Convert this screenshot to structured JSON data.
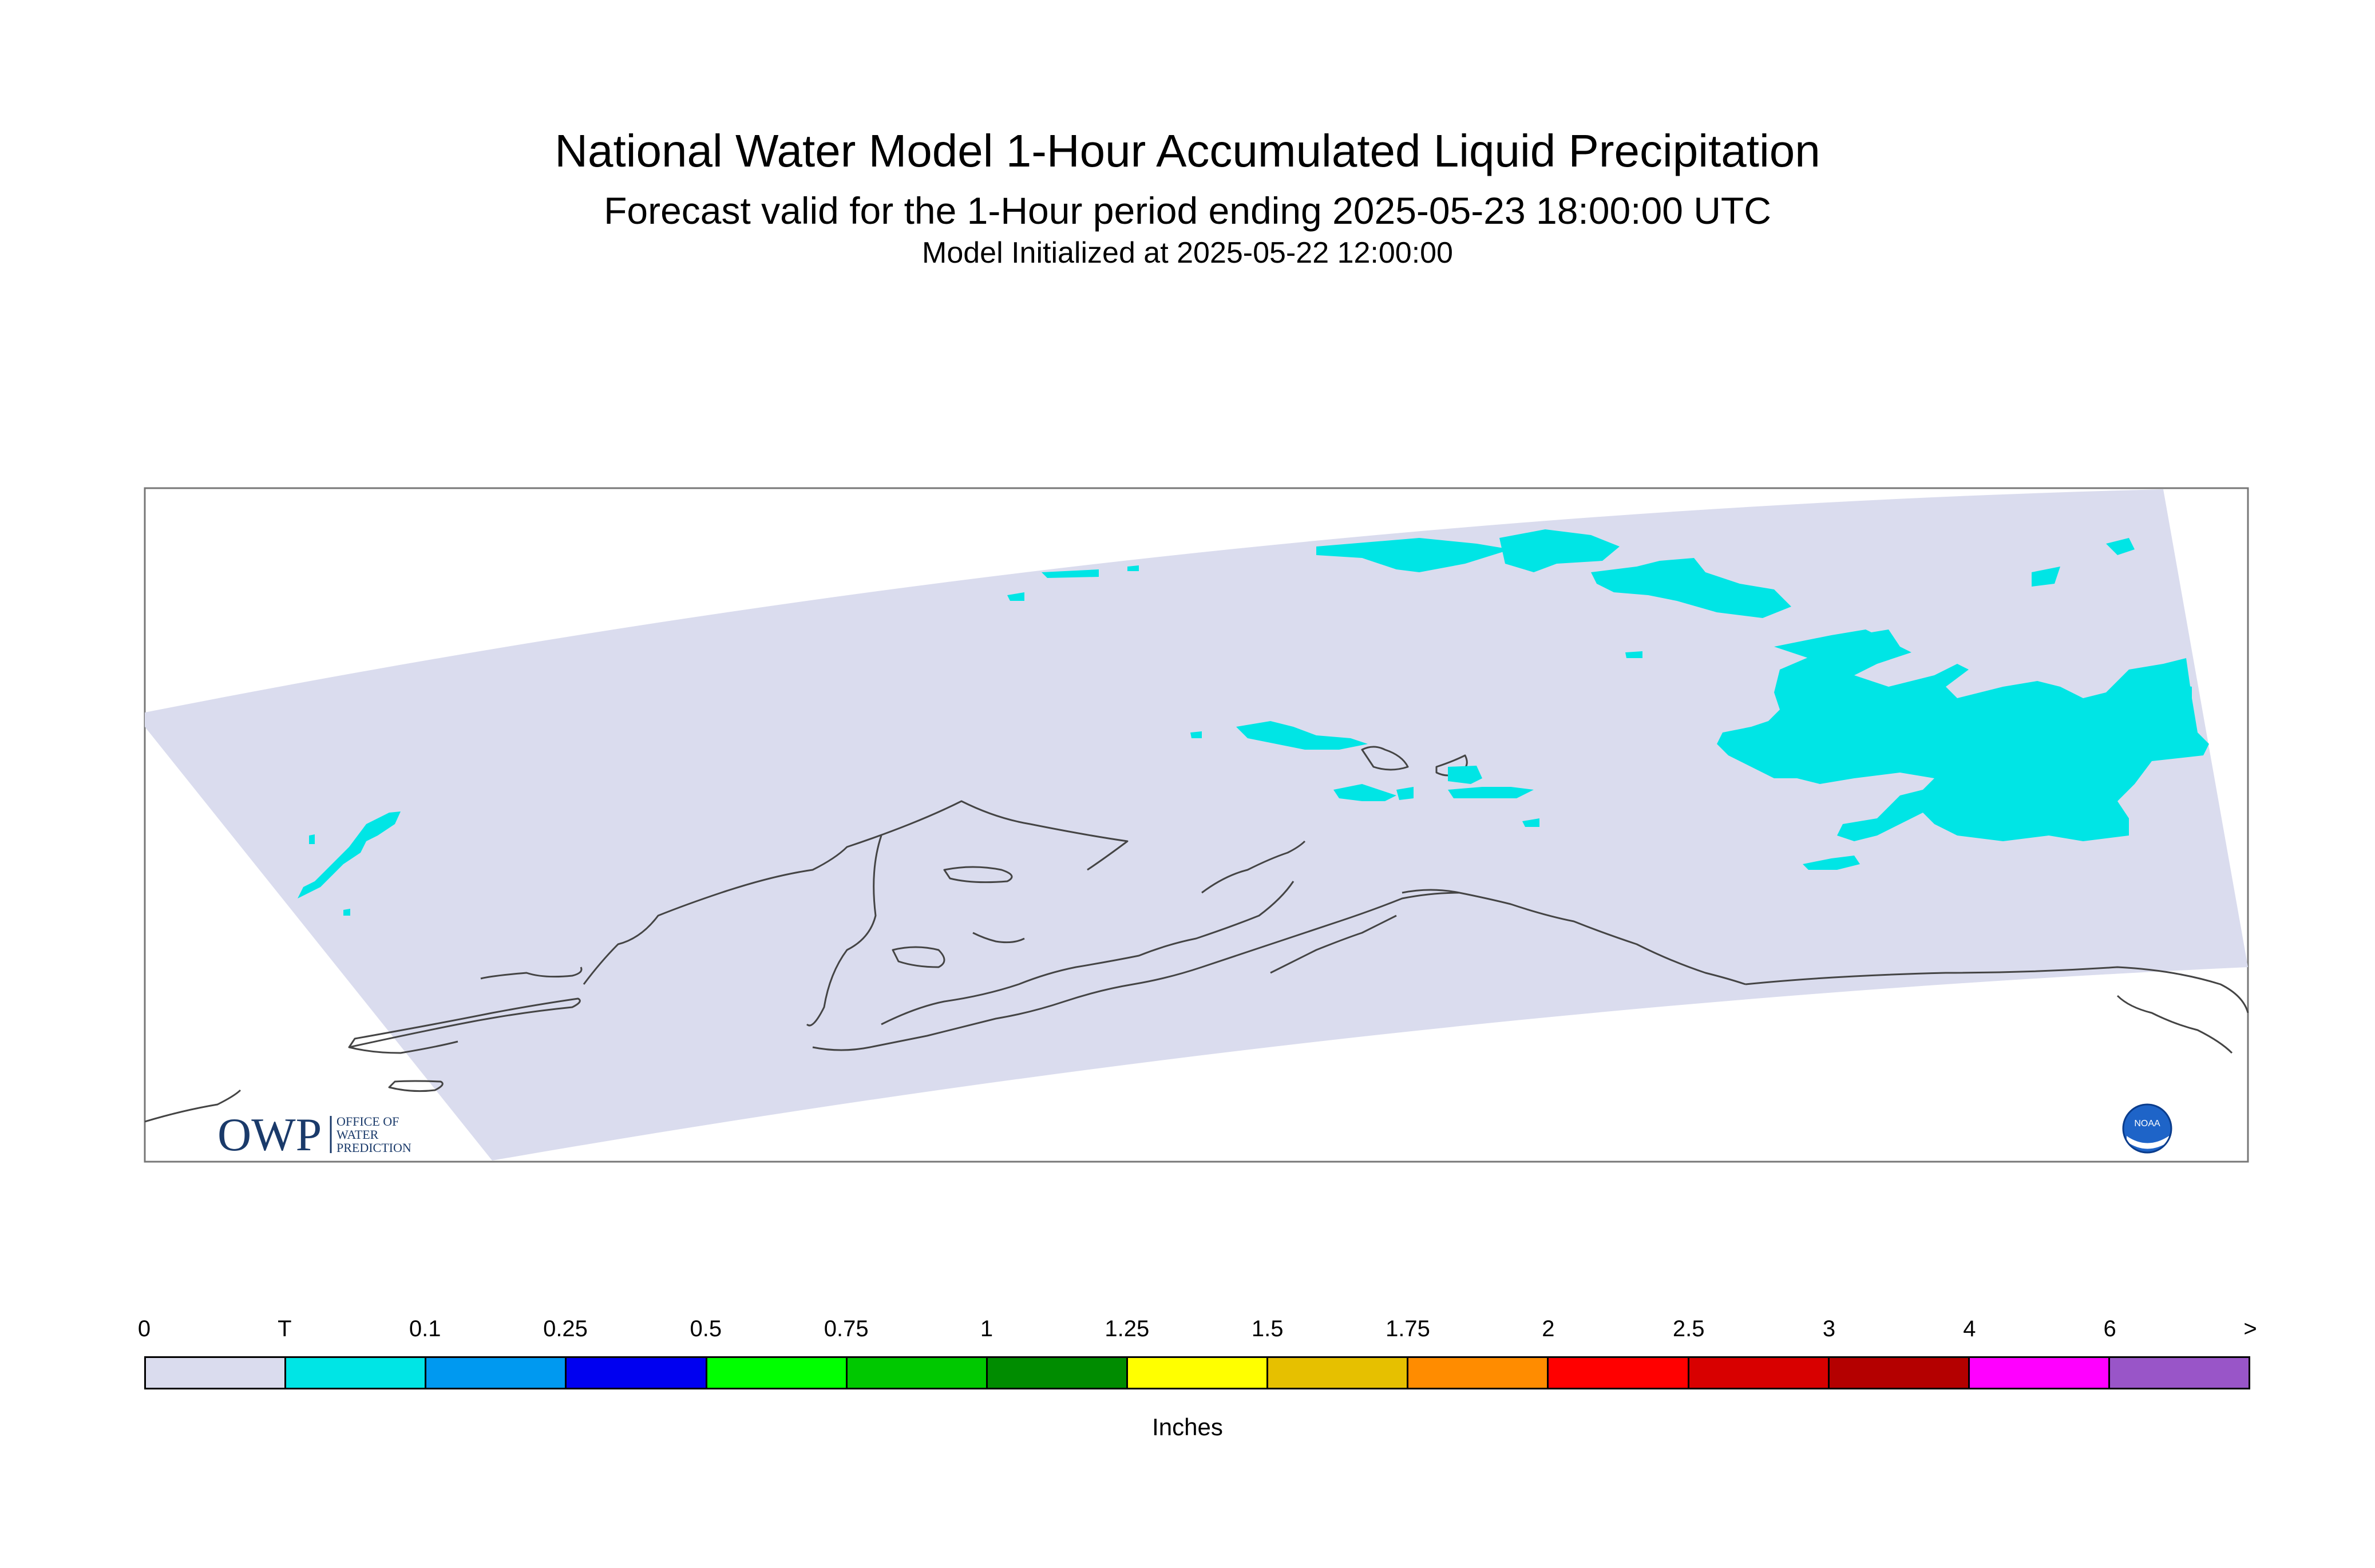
{
  "title": {
    "main": "National Water Model 1-Hour Accumulated Liquid Precipitation",
    "sub": "Forecast valid for the 1-Hour period ending 2025-05-23 18:00:00 UTC",
    "init": "Model Initialized at 2025-05-22 12:00:00"
  },
  "logos": {
    "owp_text": "OWP",
    "owp_sub1": "OFFICE OF",
    "owp_sub2": "WATER",
    "owp_sub3": "PREDICTION",
    "noaa_text": "NOAA"
  },
  "colors": {
    "domain_fill": "#dadcee",
    "precip_fill": "#00e5e5",
    "coast": "#444444",
    "frame": "#777777"
  },
  "legend": {
    "unit": "Inches",
    "labels": [
      "0",
      "T",
      "0.1",
      "0.25",
      "0.5",
      "0.75",
      "1",
      "1.25",
      "1.5",
      "1.75",
      "2",
      "2.5",
      "3",
      "4",
      "6",
      ">"
    ],
    "colors": [
      "#dadcee",
      "#00e5e5",
      "#0099f0",
      "#0000f0",
      "#00ff00",
      "#00c800",
      "#008c00",
      "#ffff00",
      "#e6c000",
      "#ff8c00",
      "#ff0000",
      "#d80000",
      "#b40000",
      "#ff00ff",
      "#9955c8"
    ]
  }
}
